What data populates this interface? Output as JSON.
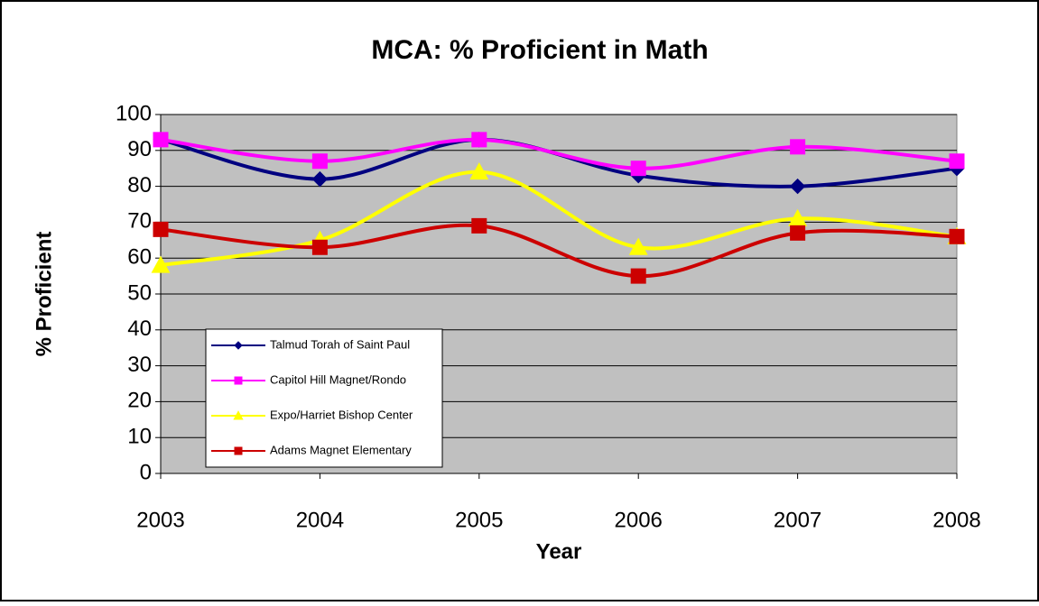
{
  "chart_data": {
    "type": "line",
    "title": "MCA: % Proficient in Math",
    "x_label": "Year",
    "y_label": "% Proficient",
    "categories": [
      "2003",
      "2004",
      "2005",
      "2006",
      "2007",
      "2008"
    ],
    "series": [
      {
        "name": "Talmud Torah of Saint Paul",
        "color": "#000080",
        "marker": "diamond",
        "values": [
          93,
          82,
          93,
          83,
          80,
          85
        ]
      },
      {
        "name": "Capitol Hill Magnet/Rondo",
        "color": "#ff00ff",
        "marker": "square",
        "values": [
          93,
          87,
          93,
          85,
          91,
          87
        ]
      },
      {
        "name": "Expo/Harriet Bishop Center",
        "color": "#ffff00",
        "marker": "triangle",
        "values": [
          58,
          65,
          84,
          63,
          71,
          66
        ]
      },
      {
        "name": "Adams Magnet Elementary",
        "color": "#cc0000",
        "marker": "square",
        "values": [
          68,
          63,
          69,
          55,
          67,
          66
        ]
      }
    ],
    "ylim": [
      0,
      100
    ],
    "yticks": [
      0,
      10,
      20,
      30,
      40,
      50,
      60,
      70,
      80,
      90,
      100
    ],
    "grid": true,
    "smooth": true,
    "legend": "lower left"
  }
}
